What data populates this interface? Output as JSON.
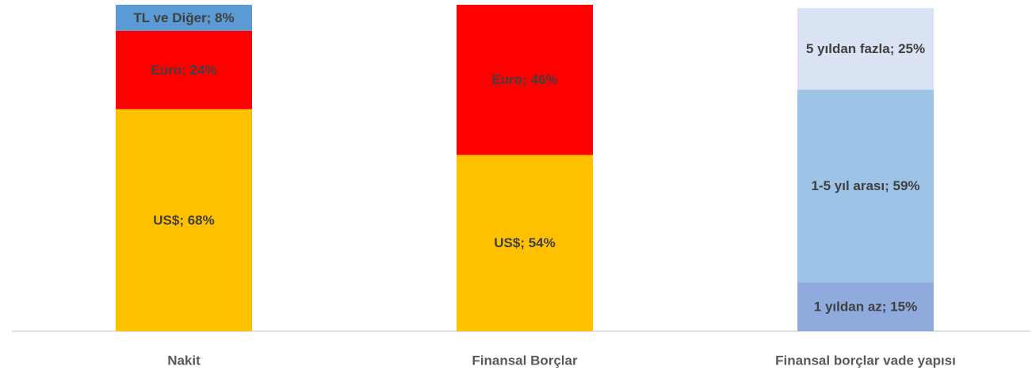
{
  "chart_data": {
    "type": "stacked_bar",
    "categories": [
      "Nakit",
      "Finansal Borçlar",
      "Finansal borçlar vade yapısı"
    ],
    "ylim": [
      0,
      100
    ],
    "series": [
      {
        "color": "#ffc000",
        "values": [
          68,
          54,
          null
        ],
        "value_labels": [
          "US$; 68%",
          "US$; 54%",
          null
        ]
      },
      {
        "color": "#ff0000",
        "values": [
          24,
          46,
          null
        ],
        "value_labels": [
          "Euro; 24%",
          "Euro; 46%",
          null
        ]
      },
      {
        "color": "#5b9bd5",
        "values": [
          8,
          null,
          null
        ],
        "value_labels": [
          "TL ve Diğer; 8%",
          null,
          null
        ]
      },
      {
        "color": "#8faadc",
        "values": [
          null,
          null,
          15
        ],
        "value_labels": [
          null,
          null,
          "1 yıldan az; 15%"
        ]
      },
      {
        "color": "#9dc3e6",
        "values": [
          null,
          null,
          59
        ],
        "value_labels": [
          null,
          null,
          "1-5 yıl arası; 59%"
        ]
      },
      {
        "color": "#dae3f3",
        "values": [
          null,
          null,
          25
        ],
        "value_labels": [
          null,
          null,
          "5 yıldan fazla; 25%"
        ]
      }
    ]
  }
}
